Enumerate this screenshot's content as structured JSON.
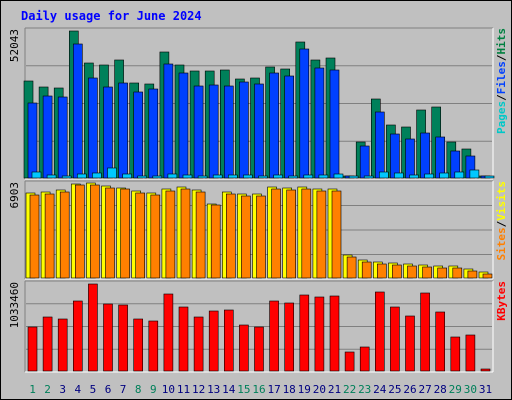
{
  "chart_data": {
    "type": "bar",
    "title": "Daily usage for June 2024",
    "categories": [
      "1",
      "2",
      "3",
      "4",
      "5",
      "6",
      "7",
      "8",
      "9",
      "10",
      "11",
      "12",
      "13",
      "14",
      "15",
      "16",
      "17",
      "18",
      "19",
      "20",
      "21",
      "22",
      "23",
      "24",
      "25",
      "26",
      "27",
      "28",
      "29",
      "30",
      "31"
    ],
    "weekend_days": [
      "1",
      "2",
      "8",
      "9",
      "15",
      "16",
      "22",
      "23",
      "29",
      "30"
    ],
    "panels": [
      {
        "id": "requests",
        "ylim": [
          0,
          52043
        ],
        "max_label": "52043",
        "right_label": [
          "Pages",
          "/",
          "Files",
          "/",
          "Hits"
        ],
        "right_label_colors": [
          "#00c8c8",
          "#000000",
          "#0040ff",
          "#000000",
          "#008040"
        ],
        "series": [
          {
            "name": "Hits",
            "color": "#00805a",
            "values": [
              34400,
              32200,
              31700,
              51900,
              40800,
              40000,
              41900,
              33700,
              33200,
              44500,
              40000,
              38000,
              38000,
              38400,
              35000,
              35500,
              39300,
              38600,
              48200,
              41900,
              42500,
              0,
              12700,
              27900,
              18600,
              18100,
              24100,
              25100,
              12800,
              10300,
              0
            ]
          },
          {
            "name": "Files",
            "color": "#0040ff",
            "values": [
              26600,
              29000,
              28500,
              47400,
              35400,
              32300,
              33700,
              30600,
              31500,
              40300,
              37000,
              32700,
              32900,
              32600,
              34100,
              33200,
              37300,
              36000,
              45700,
              38900,
              38300,
              0,
              11500,
              23500,
              15500,
              13800,
              15900,
              14600,
              9700,
              7800,
              0
            ]
          },
          {
            "name": "Pages",
            "color": "#00c8ff",
            "values": [
              2300,
              1100,
              600,
              1400,
              1900,
              3600,
              1300,
              800,
              800,
              1400,
              900,
              800,
              1000,
              900,
              900,
              800,
              1100,
              800,
              1100,
              900,
              1300,
              0,
              600,
              2100,
              1700,
              1100,
              1500,
              1700,
              2200,
              2700,
              0
            ]
          }
        ]
      },
      {
        "id": "visits",
        "ylim": [
          0,
          6903
        ],
        "max_label": "6903",
        "right_label": [
          "Sites",
          "/",
          "Visits"
        ],
        "right_label_colors": [
          "#ff8000",
          "#000000",
          "#ffff00"
        ],
        "series": [
          {
            "name": "Visits",
            "color": "#ffff00",
            "values": [
              6230,
              6280,
              6480,
              6930,
              6940,
              6720,
              6640,
              6380,
              6230,
              6560,
              6690,
              6470,
              5460,
              6280,
              6180,
              6180,
              6680,
              6620,
              6690,
              6550,
              6560,
              1690,
              1300,
              1190,
              1070,
              1000,
              960,
              870,
              860,
              660,
              410
            ]
          },
          {
            "name": "Sites",
            "color": "#ff8000",
            "values": [
              6090,
              6150,
              6330,
              6820,
              6830,
              6580,
              6500,
              6250,
              6090,
              6420,
              6550,
              6330,
              5330,
              6150,
              6040,
              6040,
              6550,
              6480,
              6550,
              6420,
              6420,
              1570,
              1170,
              1060,
              950,
              880,
              840,
              750,
              740,
              550,
              300
            ]
          }
        ]
      },
      {
        "id": "kbytes",
        "ylim": [
          0,
          1033460
        ],
        "max_label": "1033460",
        "right_label": [
          "KBytes"
        ],
        "right_label_colors": [
          "#ff0000"
        ],
        "series": [
          {
            "name": "KBytes",
            "color": "#ff0000",
            "values": [
              520000,
              646000,
              618000,
              826000,
              1033000,
              794000,
              782000,
              617000,
              598000,
              910000,
              764000,
              645000,
              710000,
              729000,
              546000,
              522000,
              832000,
              803000,
              899000,
              879000,
              892000,
              220000,
              290000,
              935000,
              757000,
              657000,
              928000,
              699000,
              400000,
              426000,
              0
            ]
          }
        ]
      }
    ]
  }
}
